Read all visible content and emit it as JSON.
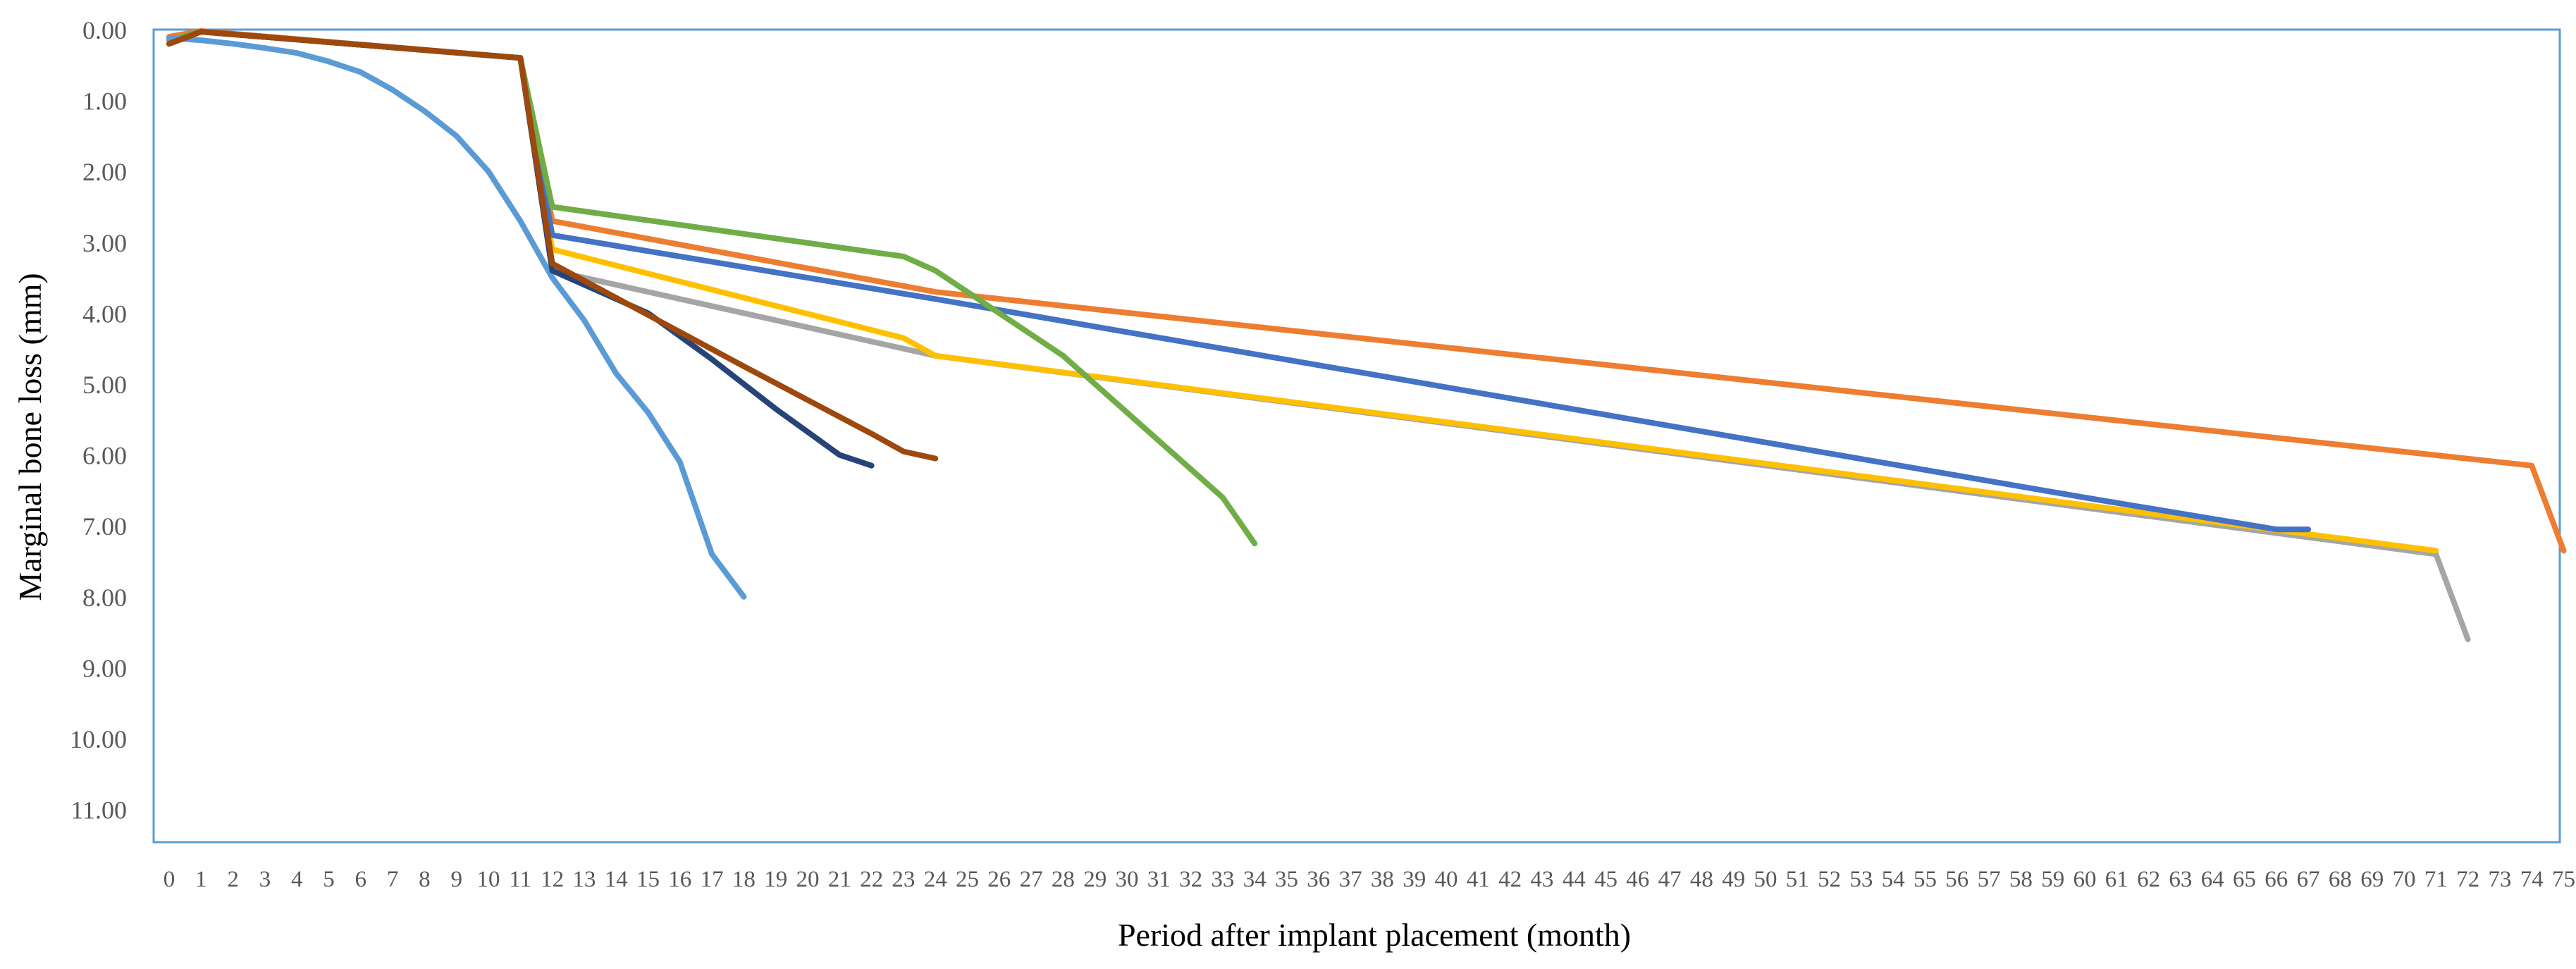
{
  "chart_data": {
    "type": "line",
    "title": "",
    "xlabel": "Period after implant placement (month)",
    "ylabel": "Marginal bone loss (mm)",
    "x_ticks": [
      0,
      1,
      2,
      3,
      4,
      5,
      6,
      7,
      8,
      9,
      10,
      11,
      12,
      13,
      14,
      15,
      16,
      17,
      18,
      19,
      20,
      21,
      22,
      23,
      24,
      25,
      26,
      27,
      28,
      29,
      30,
      31,
      32,
      33,
      34,
      35,
      36,
      37,
      38,
      39,
      40,
      41,
      42,
      43,
      44,
      45,
      46,
      47,
      48,
      49,
      50,
      51,
      52,
      53,
      54,
      55,
      56,
      57,
      58,
      59,
      60,
      61,
      62,
      63,
      64,
      65,
      66,
      67,
      68,
      69,
      70,
      71,
      72,
      73,
      74,
      75
    ],
    "y_tick_labels": [
      "0.00",
      "1.00",
      "2.00",
      "3.00",
      "4.00",
      "5.00",
      "6.00",
      "7.00",
      "8.00",
      "9.00",
      "10.00",
      "11.00"
    ],
    "xlim": [
      0,
      75
    ],
    "ylim": [
      0,
      11.5
    ],
    "y_inverted": true,
    "grid": false,
    "legend": "none",
    "series": [
      {
        "color": "#ED7D31",
        "x": [
          0,
          1,
          11,
          12,
          24,
          74,
          75
        ],
        "y": [
          0.1,
          0.02,
          0.4,
          2.7,
          3.7,
          6.15,
          7.35
        ]
      },
      {
        "color": "#A5A5A5",
        "x": [
          0,
          1,
          11,
          12,
          24,
          71,
          72
        ],
        "y": [
          0.15,
          0.03,
          0.4,
          3.4,
          4.6,
          7.4,
          8.6
        ]
      },
      {
        "color": "#FFC000",
        "x": [
          0,
          1,
          11,
          12,
          23,
          24,
          71
        ],
        "y": [
          0.15,
          0.03,
          0.4,
          3.1,
          4.35,
          4.6,
          7.35
        ]
      },
      {
        "color": "#4472C4",
        "x": [
          0,
          1,
          11,
          12,
          24,
          60,
          66,
          67
        ],
        "y": [
          0.15,
          0.03,
          0.4,
          2.9,
          3.8,
          6.6,
          7.05,
          7.05
        ]
      },
      {
        "color": "#70AD47",
        "x": [
          0,
          1,
          11,
          12,
          23,
          24,
          28,
          33,
          34
        ],
        "y": [
          0.15,
          0.03,
          0.4,
          2.5,
          3.2,
          3.4,
          4.6,
          6.6,
          7.25
        ]
      },
      {
        "color": "#5B9BD5",
        "x": [
          0,
          1,
          2,
          3,
          4,
          5,
          6,
          7,
          8,
          9,
          10,
          11,
          12,
          13,
          14,
          15,
          16,
          17,
          18
        ],
        "y": [
          0.12,
          0.15,
          0.2,
          0.26,
          0.33,
          0.45,
          0.6,
          0.85,
          1.15,
          1.5,
          2.0,
          2.7,
          3.5,
          4.1,
          4.85,
          5.4,
          6.1,
          7.4,
          8.0
        ]
      },
      {
        "color": "#264478",
        "x": [
          0,
          1,
          11,
          12,
          15,
          17,
          19,
          21,
          22
        ],
        "y": [
          0.2,
          0.03,
          0.4,
          3.4,
          4.0,
          4.65,
          5.35,
          6.0,
          6.15
        ]
      },
      {
        "color": "#9E480E",
        "x": [
          0,
          1,
          11,
          12,
          18,
          22,
          23,
          24
        ],
        "y": [
          0.2,
          0.03,
          0.4,
          3.3,
          4.75,
          5.7,
          5.95,
          6.05
        ]
      }
    ]
  }
}
